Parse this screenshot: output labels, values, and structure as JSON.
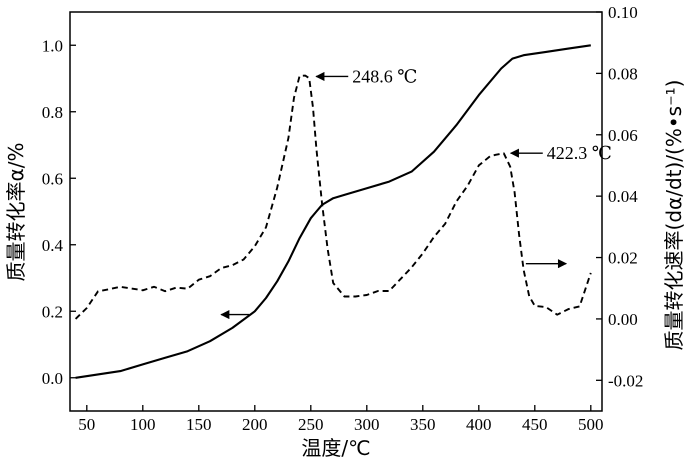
{
  "chart_data": {
    "type": "line",
    "xlabel": "温度/℃",
    "ylabel_left": "质量转化率α/%",
    "ylabel_right": "质量转化速率(dα/dt)/(%•s⁻¹)",
    "xlim": [
      35,
      510
    ],
    "ylim_left": [
      -0.1,
      1.1
    ],
    "ylim_right": [
      -0.03,
      0.1
    ],
    "x_ticks": [
      50,
      100,
      150,
      200,
      250,
      300,
      350,
      400,
      450,
      500
    ],
    "x_tick_labels": [
      "50",
      "100",
      "150",
      "200",
      "250",
      "300",
      "350",
      "400",
      "450",
      "500"
    ],
    "y_left_ticks": [
      0.0,
      0.2,
      0.4,
      0.6,
      0.8,
      1.0
    ],
    "y_left_tick_labels": [
      "0.0",
      "0.2",
      "0.4",
      "0.6",
      "0.8",
      "1.0"
    ],
    "y_right_ticks": [
      -0.02,
      0.0,
      0.02,
      0.04,
      0.06,
      0.08,
      0.1
    ],
    "y_right_tick_labels": [
      "-0.02",
      "0.00",
      "0.02",
      "0.04",
      "0.06",
      "0.08",
      "0.10"
    ],
    "series": [
      {
        "axis": "left",
        "style": "solid",
        "x": [
          40,
          60,
          80,
          100,
          120,
          140,
          160,
          180,
          200,
          210,
          220,
          230,
          240,
          250,
          255,
          260,
          270,
          280,
          300,
          320,
          340,
          360,
          380,
          400,
          420,
          430,
          440,
          450,
          460,
          480,
          500
        ],
        "y": [
          0.0,
          0.01,
          0.02,
          0.04,
          0.06,
          0.08,
          0.11,
          0.15,
          0.2,
          0.24,
          0.29,
          0.35,
          0.42,
          0.48,
          0.5,
          0.52,
          0.54,
          0.55,
          0.57,
          0.59,
          0.62,
          0.68,
          0.76,
          0.85,
          0.93,
          0.96,
          0.97,
          0.975,
          0.98,
          0.99,
          1.0
        ]
      },
      {
        "axis": "right",
        "style": "dashed",
        "x": [
          40,
          50,
          60,
          70,
          80,
          90,
          100,
          110,
          120,
          130,
          140,
          150,
          160,
          170,
          180,
          190,
          200,
          210,
          220,
          230,
          235,
          240,
          245,
          248.6,
          252,
          255,
          260,
          265,
          270,
          280,
          290,
          300,
          310,
          320,
          330,
          340,
          350,
          360,
          370,
          380,
          390,
          400,
          410,
          415,
          422.3,
          428,
          432,
          436,
          440,
          445,
          450,
          460,
          470,
          480,
          490,
          500
        ],
        "y": [
          0.0,
          0.004,
          0.008,
          0.01,
          0.01,
          0.011,
          0.009,
          0.01,
          0.009,
          0.01,
          0.011,
          0.012,
          0.014,
          0.016,
          0.018,
          0.02,
          0.023,
          0.03,
          0.042,
          0.06,
          0.072,
          0.079,
          0.079,
          0.078,
          0.07,
          0.055,
          0.038,
          0.022,
          0.012,
          0.008,
          0.007,
          0.008,
          0.008,
          0.01,
          0.013,
          0.017,
          0.021,
          0.026,
          0.032,
          0.038,
          0.044,
          0.049,
          0.053,
          0.054,
          0.054,
          0.05,
          0.04,
          0.028,
          0.016,
          0.008,
          0.004,
          0.003,
          0.002,
          0.003,
          0.005,
          0.015
        ]
      }
    ],
    "annotations": [
      {
        "text": "248.6 ℃",
        "x": 248.6,
        "y": 0.079,
        "axis": "right"
      },
      {
        "text": "422.3 ℃",
        "x": 422.3,
        "y": 0.054,
        "axis": "right"
      }
    ],
    "legend_arrows": [
      {
        "series": 0,
        "direction": "left",
        "x": [
          195,
          170
        ],
        "y": 0.19,
        "axis": "left"
      },
      {
        "series": 1,
        "direction": "right",
        "x": [
          442,
          478
        ],
        "y": 0.018,
        "axis": "right"
      }
    ]
  }
}
